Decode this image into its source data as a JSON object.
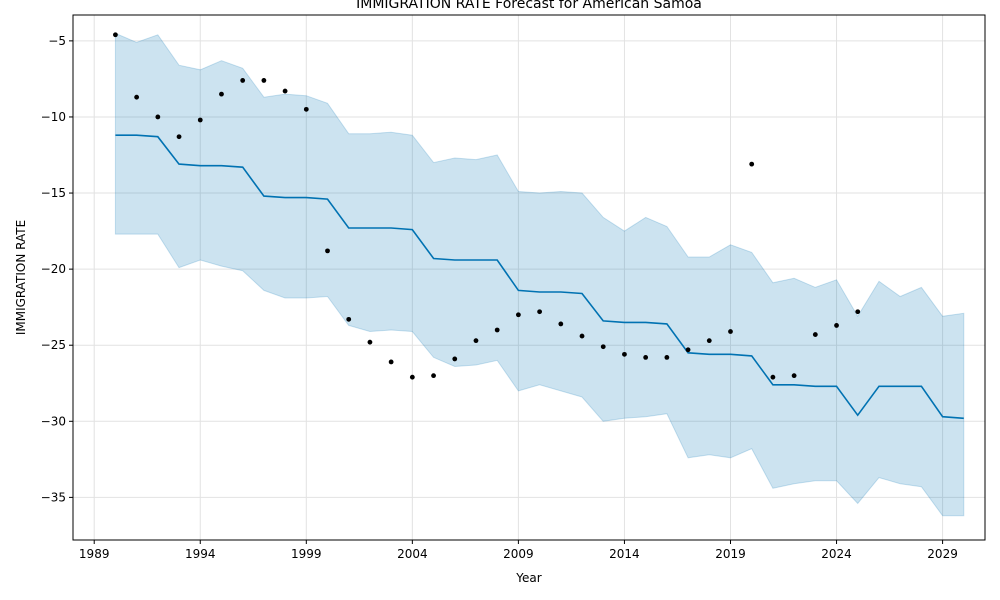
{
  "chart_data": {
    "type": "line",
    "title": "IMMIGRATION RATE Forecast for American Samoa",
    "xlabel": "Year",
    "ylabel": "IMMIGRATION RATE",
    "xlim": [
      1988,
      2031
    ],
    "ylim": [
      -37.8,
      -3.3
    ],
    "x_ticks": [
      1989,
      1994,
      1999,
      2004,
      2009,
      2014,
      2019,
      2024,
      2029
    ],
    "y_ticks": [
      -5,
      -10,
      -15,
      -20,
      -25,
      -30,
      -35
    ],
    "grid": true,
    "colors": {
      "forecast_line": "#0072b2",
      "interval_fill": "#0072b2",
      "observed_points": "#000000"
    },
    "observed": {
      "x": [
        1990,
        1991,
        1992,
        1993,
        1994,
        1995,
        1996,
        1997,
        1998,
        1999,
        2000,
        2001,
        2002,
        2003,
        2004,
        2005,
        2006,
        2007,
        2008,
        2009,
        2010,
        2011,
        2012,
        2013,
        2014,
        2015,
        2016,
        2017,
        2018,
        2019,
        2020,
        2021,
        2022,
        2023,
        2024,
        2025
      ],
      "y": [
        -4.6,
        -8.7,
        -10.0,
        -11.3,
        -10.2,
        -8.5,
        -7.6,
        -7.6,
        -8.3,
        -9.5,
        -18.8,
        -23.3,
        -24.8,
        -26.1,
        -27.1,
        -27.0,
        -25.9,
        -24.7,
        -24.0,
        -23.0,
        -22.8,
        -23.6,
        -24.4,
        -25.1,
        -25.6,
        -25.8,
        -25.8,
        -25.3,
        -24.7,
        -24.1,
        -13.1,
        -27.1,
        -27.0,
        -24.3,
        -23.7,
        -22.8
      ]
    },
    "forecast": {
      "x": [
        1990,
        1991,
        1992,
        1993,
        1994,
        1995,
        1996,
        1997,
        1998,
        1999,
        2000,
        2001,
        2002,
        2003,
        2004,
        2005,
        2006,
        2007,
        2008,
        2009,
        2010,
        2011,
        2012,
        2013,
        2014,
        2015,
        2016,
        2017,
        2018,
        2019,
        2020,
        2021,
        2022,
        2023,
        2024,
        2025,
        2026,
        2027,
        2028,
        2029,
        2030
      ],
      "yhat": [
        -11.2,
        -11.2,
        -11.3,
        -13.1,
        -13.2,
        -13.2,
        -13.3,
        -15.2,
        -15.3,
        -15.3,
        -15.4,
        -17.3,
        -17.3,
        -17.3,
        -17.4,
        -19.3,
        -19.4,
        -19.4,
        -19.4,
        -21.4,
        -21.5,
        -21.5,
        -21.6,
        -23.4,
        -23.5,
        -23.5,
        -23.6,
        -25.5,
        -25.6,
        -25.6,
        -25.7,
        -27.6,
        -27.6,
        -27.7,
        -27.7,
        -29.6,
        -27.7,
        -27.7,
        -27.7,
        -29.7,
        -29.8
      ],
      "upper": [
        -4.5,
        -5.1,
        -4.6,
        -6.6,
        -6.9,
        -6.3,
        -6.8,
        -8.7,
        -8.5,
        -8.6,
        -9.1,
        -11.1,
        -11.1,
        -11.0,
        -11.2,
        -13.0,
        -12.7,
        -12.8,
        -12.5,
        -14.9,
        -15.0,
        -14.9,
        -15.0,
        -16.6,
        -17.5,
        -16.6,
        -17.2,
        -19.2,
        -19.2,
        -18.4,
        -18.9,
        -20.9,
        -20.6,
        -21.2,
        -20.7,
        -23.1,
        -20.8,
        -21.8,
        -21.2,
        -23.1,
        -22.9
      ],
      "lower": [
        -17.7,
        -17.7,
        -17.7,
        -19.9,
        -19.4,
        -19.8,
        -20.1,
        -21.4,
        -21.9,
        -21.9,
        -21.8,
        -23.7,
        -24.1,
        -24.0,
        -24.1,
        -25.8,
        -26.4,
        -26.3,
        -26.0,
        -28.0,
        -27.6,
        -28.0,
        -28.4,
        -30.0,
        -29.8,
        -29.7,
        -29.5,
        -32.4,
        -32.2,
        -32.4,
        -31.8,
        -34.4,
        -34.1,
        -33.9,
        -33.9,
        -35.4,
        -33.7,
        -34.1,
        -34.3,
        -36.2,
        -36.2
      ]
    }
  }
}
